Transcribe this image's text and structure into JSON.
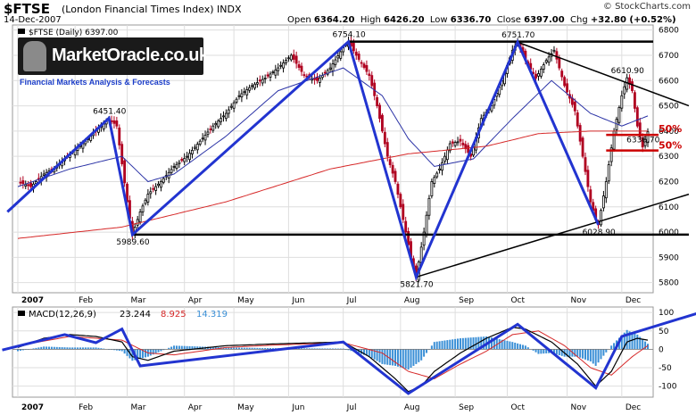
{
  "header": {
    "symbol": "$FTSE",
    "index_name": "(London Financial Times Index)",
    "exchange": "INDX",
    "date": "14-Dec-2007",
    "open_label": "Open",
    "open": "6364.20",
    "high_label": "High",
    "high": "6426.20",
    "low_label": "Low",
    "low": "6336.70",
    "close_label": "Close",
    "close": "6397.00",
    "chg_label": "Chg",
    "chg": "+32.80 (+0.52%)",
    "credit": "© StockCharts.com"
  },
  "logo": {
    "name": "MarketOracle.co.uk",
    "tagline": "Financial Markets Analysis & Forecasts"
  },
  "colors": {
    "up": "#000000",
    "down": "#b00020",
    "ma_short": "#2b33a6",
    "ma_long": "#d62828",
    "trendline": "#2234d0",
    "macd_line": "#000000",
    "signal_line": "#d62828",
    "histogram": "#3a8fd6"
  },
  "chart_data": [
    {
      "type": "line",
      "panel": "price",
      "legend_label": "$FTSE (Daily) 6397.00",
      "y_ticks": [
        5800,
        5900,
        6000,
        6100,
        6200,
        6300,
        6400,
        6500,
        6600,
        6700,
        6800
      ],
      "ylim": [
        5760,
        6820
      ],
      "x_months": [
        "2007",
        "Feb",
        "Mar",
        "Apr",
        "May",
        "Jun",
        "Jul",
        "Aug",
        "Sep",
        "Oct",
        "Nov",
        "Dec"
      ],
      "x_month_idx": [
        0,
        22,
        42,
        64,
        83,
        104,
        125,
        147,
        168,
        188,
        211,
        232
      ],
      "n": 242,
      "close_anchors": [
        [
          0,
          6200
        ],
        [
          5,
          6180
        ],
        [
          10,
          6230
        ],
        [
          15,
          6260
        ],
        [
          20,
          6310
        ],
        [
          25,
          6350
        ],
        [
          30,
          6400
        ],
        [
          35,
          6451
        ],
        [
          38,
          6420
        ],
        [
          42,
          6120
        ],
        [
          44,
          5990
        ],
        [
          47,
          6080
        ],
        [
          50,
          6150
        ],
        [
          55,
          6200
        ],
        [
          60,
          6260
        ],
        [
          65,
          6300
        ],
        [
          70,
          6360
        ],
        [
          75,
          6420
        ],
        [
          80,
          6470
        ],
        [
          85,
          6540
        ],
        [
          90,
          6580
        ],
        [
          95,
          6610
        ],
        [
          100,
          6650
        ],
        [
          105,
          6700
        ],
        [
          110,
          6620
        ],
        [
          115,
          6600
        ],
        [
          120,
          6650
        ],
        [
          125,
          6730
        ],
        [
          127,
          6754
        ],
        [
          130,
          6700
        ],
        [
          135,
          6620
        ],
        [
          138,
          6500
        ],
        [
          142,
          6300
        ],
        [
          145,
          6200
        ],
        [
          148,
          6050
        ],
        [
          151,
          5900
        ],
        [
          153,
          5822
        ],
        [
          156,
          6000
        ],
        [
          159,
          6200
        ],
        [
          162,
          6250
        ],
        [
          166,
          6350
        ],
        [
          170,
          6360
        ],
        [
          174,
          6300
        ],
        [
          178,
          6450
        ],
        [
          182,
          6500
        ],
        [
          186,
          6600
        ],
        [
          190,
          6720
        ],
        [
          192,
          6752
        ],
        [
          195,
          6680
        ],
        [
          199,
          6610
        ],
        [
          203,
          6680
        ],
        [
          206,
          6720
        ],
        [
          210,
          6580
        ],
        [
          214,
          6480
        ],
        [
          217,
          6300
        ],
        [
          220,
          6120
        ],
        [
          222,
          6050
        ],
        [
          223,
          6029
        ],
        [
          226,
          6200
        ],
        [
          229,
          6400
        ],
        [
          232,
          6540
        ],
        [
          234,
          6611
        ],
        [
          236,
          6560
        ],
        [
          238,
          6420
        ],
        [
          240,
          6337
        ],
        [
          242,
          6397
        ]
      ],
      "ma_short_anchors": [
        [
          0,
          6180
        ],
        [
          20,
          6250
        ],
        [
          40,
          6300
        ],
        [
          50,
          6200
        ],
        [
          60,
          6230
        ],
        [
          80,
          6380
        ],
        [
          100,
          6560
        ],
        [
          125,
          6650
        ],
        [
          140,
          6540
        ],
        [
          150,
          6370
        ],
        [
          160,
          6260
        ],
        [
          175,
          6290
        ],
        [
          190,
          6450
        ],
        [
          205,
          6600
        ],
        [
          220,
          6470
        ],
        [
          232,
          6420
        ],
        [
          242,
          6460
        ]
      ],
      "ma_long_anchors": [
        [
          0,
          5975
        ],
        [
          40,
          6020
        ],
        [
          80,
          6120
        ],
        [
          120,
          6250
        ],
        [
          150,
          6310
        ],
        [
          180,
          6340
        ],
        [
          200,
          6390
        ],
        [
          220,
          6400
        ],
        [
          242,
          6400
        ]
      ],
      "annotations": [
        {
          "label": "6451.40",
          "i": 35,
          "v": 6451
        },
        {
          "label": "5989.60",
          "i": 44,
          "v": 5990
        },
        {
          "label": "6754.10",
          "i": 127,
          "v": 6754
        },
        {
          "label": "5821.70",
          "i": 153,
          "v": 5822
        },
        {
          "label": "6751.70",
          "i": 192,
          "v": 6752
        },
        {
          "label": "6028.90",
          "i": 223,
          "v": 6029
        },
        {
          "label": "6610.90",
          "i": 234,
          "v": 6611
        },
        {
          "label": "6336.70",
          "i": 240,
          "v": 6337
        }
      ],
      "retracements": [
        {
          "label": "50%",
          "v": 6385
        },
        {
          "label": "50%",
          "v": 6323
        }
      ],
      "support_line": 5990,
      "resistance_line": 6754
    },
    {
      "type": "line",
      "panel": "macd",
      "legend_label": "MACD(12,26,9)",
      "macd_value": "23.244",
      "signal_value": "8.925",
      "hist_value": "14.319",
      "y_ticks": [
        -100,
        -50,
        0,
        50,
        100
      ],
      "ylim": [
        -130,
        115
      ],
      "macd_anchors": [
        [
          0,
          5
        ],
        [
          10,
          30
        ],
        [
          20,
          40
        ],
        [
          30,
          35
        ],
        [
          40,
          20
        ],
        [
          44,
          -20
        ],
        [
          50,
          -30
        ],
        [
          60,
          -5
        ],
        [
          80,
          10
        ],
        [
          100,
          15
        ],
        [
          125,
          20
        ],
        [
          135,
          -20
        ],
        [
          145,
          -80
        ],
        [
          150,
          -115
        ],
        [
          155,
          -100
        ],
        [
          160,
          -60
        ],
        [
          170,
          -10
        ],
        [
          180,
          30
        ],
        [
          190,
          60
        ],
        [
          195,
          55
        ],
        [
          205,
          20
        ],
        [
          215,
          -40
        ],
        [
          222,
          -100
        ],
        [
          228,
          -60
        ],
        [
          234,
          20
        ],
        [
          238,
          30
        ],
        [
          242,
          25
        ]
      ],
      "signal_anchors": [
        [
          0,
          10
        ],
        [
          20,
          35
        ],
        [
          40,
          25
        ],
        [
          50,
          -10
        ],
        [
          60,
          -15
        ],
        [
          80,
          5
        ],
        [
          100,
          12
        ],
        [
          125,
          18
        ],
        [
          140,
          -10
        ],
        [
          150,
          -60
        ],
        [
          160,
          -80
        ],
        [
          170,
          -40
        ],
        [
          180,
          -5
        ],
        [
          190,
          40
        ],
        [
          200,
          50
        ],
        [
          210,
          10
        ],
        [
          220,
          -50
        ],
        [
          228,
          -70
        ],
        [
          236,
          -20
        ],
        [
          242,
          10
        ]
      ]
    }
  ]
}
